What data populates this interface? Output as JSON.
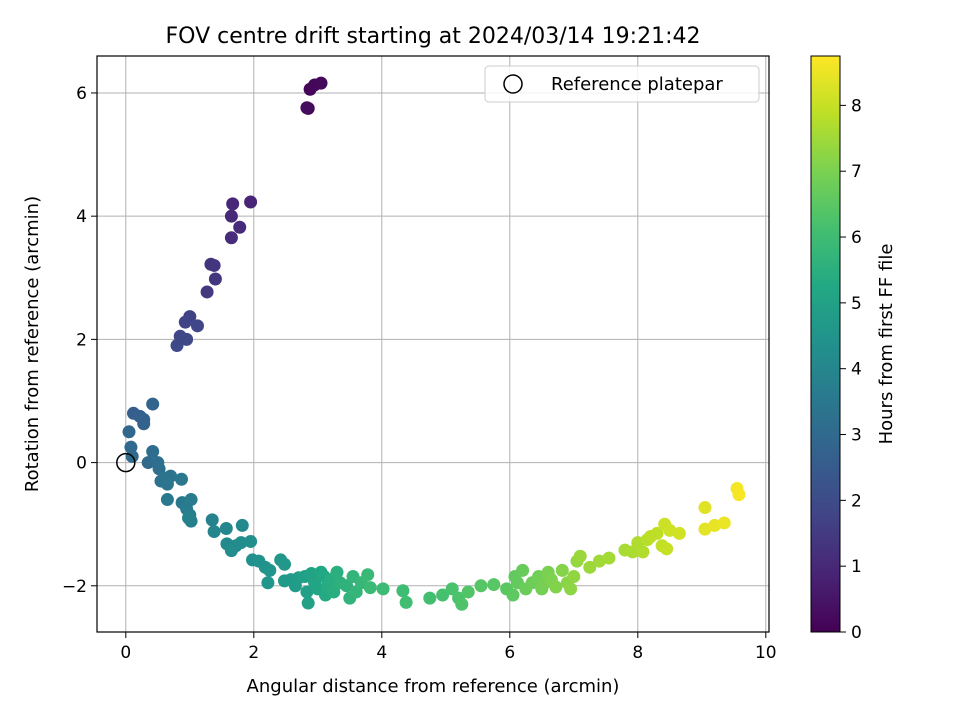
{
  "chart_data": {
    "type": "scatter",
    "title": "FOV centre drift starting at 2024/03/14 19:21:42",
    "xlabel": "Angular distance from reference (arcmin)",
    "ylabel": "Rotation from reference (arcmin)",
    "xlim": [
      -0.45,
      10.05
    ],
    "ylim": [
      -2.75,
      6.6
    ],
    "xticks": [
      0,
      2,
      4,
      6,
      8,
      10
    ],
    "yticks": [
      -2,
      0,
      2,
      4,
      6
    ],
    "xtick_labels": [
      "0",
      "2",
      "4",
      "6",
      "8",
      "10"
    ],
    "ytick_labels": [
      "−2",
      "0",
      "2",
      "4",
      "6"
    ],
    "grid": true,
    "legend": {
      "location": "upper right",
      "entries": [
        "Reference platepar"
      ]
    },
    "reference_point": {
      "x": 0,
      "y": 0
    },
    "colorbar": {
      "label": "Hours from first FF file",
      "colormap": "viridis",
      "range": [
        0,
        8.75
      ],
      "ticks": [
        0,
        1,
        2,
        3,
        4,
        5,
        6,
        7,
        8
      ],
      "tick_labels": [
        "0",
        "1",
        "2",
        "3",
        "4",
        "5",
        "6",
        "7",
        "8"
      ]
    },
    "points": [
      [
        2.85,
        5.75,
        0.05
      ],
      [
        2.88,
        6.06,
        0.1
      ],
      [
        2.95,
        6.13,
        0.15
      ],
      [
        3.05,
        6.16,
        0.2
      ],
      [
        2.83,
        5.76,
        0.25
      ],
      [
        1.95,
        4.23,
        0.9
      ],
      [
        1.67,
        4.2,
        0.95
      ],
      [
        1.65,
        4.0,
        1.0
      ],
      [
        1.78,
        3.82,
        1.05
      ],
      [
        1.65,
        3.65,
        1.1
      ],
      [
        1.33,
        3.22,
        1.3
      ],
      [
        1.38,
        3.2,
        1.35
      ],
      [
        1.4,
        2.98,
        1.4
      ],
      [
        1.27,
        2.77,
        1.45
      ],
      [
        1.0,
        2.37,
        1.7
      ],
      [
        0.93,
        2.28,
        1.75
      ],
      [
        1.12,
        2.22,
        1.8
      ],
      [
        0.85,
        2.05,
        1.85
      ],
      [
        0.95,
        2.0,
        1.9
      ],
      [
        0.8,
        1.9,
        1.95
      ],
      [
        0.12,
        0.8,
        2.6
      ],
      [
        0.22,
        0.75,
        2.65
      ],
      [
        0.28,
        0.7,
        2.7
      ],
      [
        0.28,
        0.63,
        2.75
      ],
      [
        0.42,
        0.95,
        2.8
      ],
      [
        0.05,
        0.5,
        2.9
      ],
      [
        0.08,
        0.25,
        2.95
      ],
      [
        0.1,
        0.1,
        3.0
      ],
      [
        0.35,
        0.0,
        3.05
      ],
      [
        0.42,
        0.18,
        3.1
      ],
      [
        0.5,
        0.0,
        3.15
      ],
      [
        0.52,
        -0.1,
        3.2
      ],
      [
        0.55,
        -0.3,
        3.25
      ],
      [
        0.6,
        -0.25,
        3.3
      ],
      [
        0.7,
        -0.22,
        3.35
      ],
      [
        0.65,
        -0.35,
        3.4
      ],
      [
        0.87,
        -0.27,
        3.45
      ],
      [
        0.65,
        -0.6,
        3.5
      ],
      [
        0.88,
        -0.65,
        3.55
      ],
      [
        1.02,
        -0.6,
        3.6
      ],
      [
        0.95,
        -0.75,
        3.65
      ],
      [
        1.0,
        -0.85,
        3.7
      ],
      [
        1.02,
        -0.95,
        3.75
      ],
      [
        0.98,
        -0.9,
        3.8
      ],
      [
        1.35,
        -0.93,
        3.9
      ],
      [
        1.38,
        -1.12,
        3.95
      ],
      [
        1.57,
        -1.07,
        4.0
      ],
      [
        1.82,
        -1.02,
        4.05
      ],
      [
        1.58,
        -1.32,
        4.1
      ],
      [
        1.72,
        -1.35,
        4.15
      ],
      [
        1.65,
        -1.43,
        4.2
      ],
      [
        1.8,
        -1.3,
        4.25
      ],
      [
        1.95,
        -1.28,
        4.3
      ],
      [
        1.98,
        -1.58,
        4.35
      ],
      [
        2.08,
        -1.6,
        4.4
      ],
      [
        2.18,
        -1.7,
        4.45
      ],
      [
        2.25,
        -1.75,
        4.5
      ],
      [
        2.22,
        -1.95,
        4.55
      ],
      [
        2.42,
        -1.58,
        4.6
      ],
      [
        2.48,
        -1.65,
        4.65
      ],
      [
        2.48,
        -1.92,
        4.7
      ],
      [
        2.58,
        -1.9,
        4.75
      ],
      [
        2.65,
        -2.0,
        4.8
      ],
      [
        2.7,
        -1.87,
        4.85
      ],
      [
        2.8,
        -1.85,
        4.9
      ],
      [
        2.83,
        -2.1,
        4.95
      ],
      [
        2.85,
        -2.28,
        5.0
      ],
      [
        2.9,
        -1.8,
        5.05
      ],
      [
        2.95,
        -1.95,
        5.1
      ],
      [
        3.0,
        -2.05,
        5.15
      ],
      [
        3.05,
        -1.78,
        5.2
      ],
      [
        3.1,
        -1.85,
        5.25
      ],
      [
        3.12,
        -2.15,
        5.3
      ],
      [
        3.15,
        -2.0,
        5.35
      ],
      [
        3.2,
        -1.9,
        5.4
      ],
      [
        3.25,
        -2.1,
        5.45
      ],
      [
        3.3,
        -1.78,
        5.5
      ],
      [
        3.35,
        -1.95,
        5.55
      ],
      [
        3.45,
        -2.0,
        5.6
      ],
      [
        3.5,
        -2.2,
        5.65
      ],
      [
        3.55,
        -1.85,
        5.7
      ],
      [
        3.6,
        -2.1,
        5.75
      ],
      [
        3.68,
        -1.95,
        5.8
      ],
      [
        3.78,
        -1.82,
        5.85
      ],
      [
        3.82,
        -2.03,
        5.9
      ],
      [
        4.02,
        -2.05,
        5.95
      ],
      [
        4.33,
        -2.08,
        6.0
      ],
      [
        4.38,
        -2.27,
        6.05
      ],
      [
        4.75,
        -2.2,
        6.1
      ],
      [
        4.95,
        -2.15,
        6.15
      ],
      [
        5.1,
        -2.05,
        6.2
      ],
      [
        5.2,
        -2.2,
        6.25
      ],
      [
        5.25,
        -2.3,
        6.3
      ],
      [
        5.35,
        -2.1,
        6.35
      ],
      [
        5.55,
        -2.0,
        6.4
      ],
      [
        5.75,
        -1.98,
        6.45
      ],
      [
        5.95,
        -2.05,
        6.5
      ],
      [
        6.05,
        -2.15,
        6.55
      ],
      [
        6.08,
        -1.85,
        6.6
      ],
      [
        6.12,
        -1.95,
        6.65
      ],
      [
        6.2,
        -1.75,
        6.7
      ],
      [
        6.25,
        -2.05,
        6.75
      ],
      [
        6.35,
        -1.95,
        6.8
      ],
      [
        6.45,
        -1.85,
        6.85
      ],
      [
        6.5,
        -2.05,
        6.9
      ],
      [
        6.55,
        -1.95,
        6.95
      ],
      [
        6.6,
        -1.78,
        7.0
      ],
      [
        6.65,
        -1.9,
        7.05
      ],
      [
        6.72,
        -2.02,
        7.1
      ],
      [
        6.82,
        -1.75,
        7.15
      ],
      [
        6.9,
        -1.95,
        7.2
      ],
      [
        6.95,
        -2.05,
        7.25
      ],
      [
        7.0,
        -1.85,
        7.3
      ],
      [
        7.05,
        -1.6,
        7.35
      ],
      [
        7.1,
        -1.52,
        7.4
      ],
      [
        7.25,
        -1.7,
        7.45
      ],
      [
        7.4,
        -1.6,
        7.5
      ],
      [
        7.55,
        -1.55,
        7.55
      ],
      [
        7.8,
        -1.42,
        7.6
      ],
      [
        7.92,
        -1.45,
        7.65
      ],
      [
        8.0,
        -1.3,
        7.7
      ],
      [
        8.08,
        -1.45,
        7.75
      ],
      [
        8.15,
        -1.25,
        7.8
      ],
      [
        8.2,
        -1.2,
        7.85
      ],
      [
        8.3,
        -1.15,
        7.9
      ],
      [
        8.38,
        -1.35,
        7.95
      ],
      [
        8.45,
        -1.4,
        8.0
      ],
      [
        8.42,
        -1.0,
        8.05
      ],
      [
        8.5,
        -1.1,
        8.1
      ],
      [
        8.65,
        -1.15,
        8.15
      ],
      [
        9.05,
        -0.73,
        8.35
      ],
      [
        9.05,
        -1.08,
        8.4
      ],
      [
        9.2,
        -1.02,
        8.45
      ],
      [
        9.35,
        -0.98,
        8.5
      ],
      [
        9.55,
        -0.42,
        8.6
      ],
      [
        9.58,
        -0.52,
        8.65
      ]
    ]
  }
}
